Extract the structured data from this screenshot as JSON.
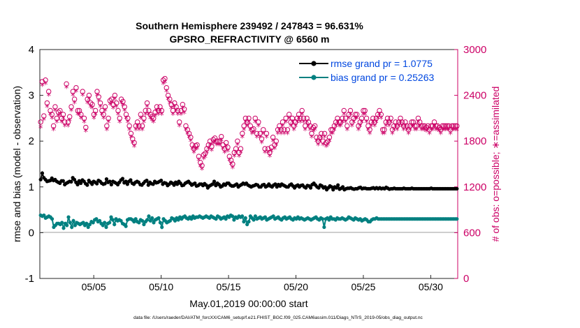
{
  "chart_data": {
    "type": "line",
    "title": "Southern Hemisphere 239492 / 247843 = 96.631%",
    "subtitle": "GPSRO_REFRACTIVITY @ 6560 m",
    "xlabel": "May.01,2019 00:00:00 start",
    "ylabel": "rmse and bias (model - observation)",
    "ylabel_right": "# of obs: o=possible; ∗=assimilated",
    "footer": "data file: /Users/raeder/DAI/ATM_forcXX/CAM6_setup/f.e21.FHIST_BGC.f09_025.CAM6assim.011/Diags_NTrS_2019-05/obs_diag_output.nc",
    "x_range": [
      1,
      32
    ],
    "ylim": [
      -1,
      4
    ],
    "ylim_right": [
      0,
      3000
    ],
    "x_ticks": [
      5,
      10,
      15,
      20,
      25,
      30
    ],
    "x_tick_labels": [
      "05/05",
      "05/10",
      "05/15",
      "05/20",
      "05/25",
      "05/30"
    ],
    "y_ticks": [
      "-1",
      "0",
      "1",
      "2",
      "3",
      "4"
    ],
    "y_right_ticks": [
      "0",
      "600",
      "1200",
      "1800",
      "2400",
      "3000"
    ],
    "grid": false,
    "legend_position": "top-right",
    "series": [
      {
        "name": "rmse grand pr = 1.0775",
        "color": "#000000",
        "marker": "filled-circle",
        "values": [
          1.16,
          1.3,
          1.2,
          1.16,
          1.12,
          1.13,
          1.14,
          1.19,
          1.14,
          1.16,
          1.12,
          1.1,
          1.08,
          1.13,
          1.13,
          1.05,
          1.08,
          1.1,
          1.12,
          1.11,
          1.2,
          1.16,
          1.1,
          1.05,
          1.13,
          1.08,
          1.15,
          1.12,
          1.07,
          1.04,
          1.14,
          1.1,
          1.06,
          1.12,
          1.1,
          1.07,
          1.14,
          1.12,
          1.08,
          1.06,
          1.07,
          1.17,
          1.1,
          1.12,
          1.05,
          1.12,
          1.1,
          1.08,
          1.05,
          1.1,
          1.15,
          1.18,
          1.09,
          1.12,
          1.06,
          1.12,
          1.15,
          1.08,
          1.06,
          1.1,
          1.12,
          1.1,
          1.05,
          1.04,
          1.08,
          1.12,
          1.14,
          1.04,
          1.1,
          1.07,
          1.06,
          1.12,
          1.09,
          1.1,
          1.12,
          1.14,
          1.06,
          1.09,
          1.08,
          1.03,
          1.06,
          1.1,
          1.08,
          1.04,
          1.1,
          1.06,
          1.12,
          1.08,
          1.03,
          1.04,
          1.08,
          1.1,
          1.12,
          1.08,
          1.04,
          1.06,
          1.08,
          1.02,
          1.03,
          1.06,
          1.06,
          1.03,
          1.07,
          1.04,
          0.98,
          1.02,
          1.04,
          1.06,
          1.12,
          1.03,
          1.08,
          1.05,
          1.0,
          1.02,
          1.06,
          1.04,
          1.08,
          1.08,
          1.04,
          1.02,
          1.02,
          1.04,
          1.06,
          1.0,
          1.03,
          1.05,
          1.08,
          1.06,
          1.08,
          1.04,
          1.02,
          1.0,
          1.02,
          1.03,
          1.05,
          1.04,
          1.0,
          1.0,
          1.04,
          1.05,
          1.0,
          1.02,
          1.06,
          1.02,
          1.0,
          1.04,
          1.06,
          1.0,
          1.05,
          1.02,
          1.06,
          1.04,
          1.02,
          1.0,
          1.0,
          1.04,
          1.06,
          1.02,
          0.98,
          1.02,
          1.04,
          1.0,
          1.03,
          1.04,
          1.0,
          0.98,
          1.03,
          1.02,
          0.98,
          1.05,
          1.08,
          1.04,
          1.0,
          0.98,
          1.04,
          1.02,
          0.98,
          1.0,
          0.94,
          0.98,
          1.02,
          1.0,
          0.94,
          1.0,
          0.98,
          1.04,
          0.95,
          0.97,
          1.0,
          0.94,
          0.96,
          0.97,
          0.97,
          0.98,
          0.96,
          0.95,
          0.96,
          0.96,
          0.98,
          0.99,
          0.96,
          0.97,
          0.97,
          0.96,
          0.96,
          0.96,
          0.97,
          0.98,
          0.96,
          0.98,
          0.96,
          0.98,
          0.96,
          0.97,
          0.96,
          0.99,
          0.97,
          0.95,
          0.96,
          0.96,
          0.97,
          0.96,
          0.96,
          0.96,
          0.96,
          0.96,
          0.97,
          0.96,
          0.96,
          0.96,
          0.96,
          0.97,
          0.96,
          0.96,
          0.96,
          0.96,
          0.96,
          0.96,
          0.96,
          0.96,
          0.96,
          0.96,
          0.96,
          0.97,
          0.96,
          0.96,
          0.96,
          0.96,
          0.96,
          0.96,
          0.96,
          0.96,
          0.96,
          0.96,
          0.96,
          0.96,
          0.96,
          0.96,
          0.96,
          0.96
        ]
      },
      {
        "name": "bias grand pr = 0.25263",
        "color": "#008080",
        "marker": "filled-circle",
        "values": [
          0.38,
          0.36,
          0.38,
          0.32,
          0.34,
          0.36,
          0.34,
          0.3,
          0.12,
          0.16,
          0.2,
          0.2,
          0.18,
          0.22,
          0.1,
          0.2,
          0.16,
          0.34,
          0.22,
          0.12,
          0.26,
          0.16,
          0.22,
          0.2,
          0.18,
          0.2,
          0.22,
          0.16,
          0.2,
          0.12,
          0.18,
          0.24,
          0.22,
          0.28,
          0.3,
          0.24,
          0.26,
          0.2,
          0.16,
          0.22,
          0.12,
          0.2,
          0.22,
          0.34,
          0.28,
          0.18,
          0.3,
          0.26,
          0.28,
          0.26,
          0.2,
          0.18,
          0.14,
          0.28,
          0.3,
          0.3,
          0.28,
          0.24,
          0.3,
          0.24,
          0.22,
          0.28,
          0.26,
          0.18,
          0.24,
          0.28,
          0.36,
          0.26,
          0.32,
          0.22,
          0.28,
          0.3,
          0.32,
          0.22,
          0.12,
          0.3,
          0.26,
          0.22,
          0.24,
          0.26,
          0.32,
          0.3,
          0.26,
          0.32,
          0.28,
          0.34,
          0.3,
          0.34,
          0.36,
          0.32,
          0.3,
          0.34,
          0.3,
          0.36,
          0.32,
          0.34,
          0.34,
          0.36,
          0.34,
          0.32,
          0.34,
          0.36,
          0.34,
          0.32,
          0.36,
          0.34,
          0.32,
          0.3,
          0.36,
          0.34,
          0.3,
          0.32,
          0.34,
          0.3,
          0.36,
          0.34,
          0.38,
          0.36,
          0.28,
          0.34,
          0.32,
          0.36,
          0.34,
          0.36,
          0.24,
          0.32,
          0.18,
          0.24,
          0.36,
          0.32,
          0.28,
          0.36,
          0.3,
          0.32,
          0.34,
          0.3,
          0.32,
          0.34,
          0.28,
          0.3,
          0.32,
          0.34,
          0.36,
          0.3,
          0.32,
          0.34,
          0.3,
          0.28,
          0.32,
          0.34,
          0.3,
          0.32,
          0.34,
          0.3,
          0.28,
          0.32,
          0.3,
          0.34,
          0.3,
          0.32,
          0.3,
          0.28,
          0.3,
          0.32,
          0.3,
          0.28,
          0.3,
          0.32,
          0.34,
          0.3,
          0.28,
          0.32,
          0.3,
          0.12,
          0.3,
          0.32,
          0.28,
          0.34,
          0.3,
          0.3,
          0.28,
          0.32,
          0.3,
          0.3,
          0.32,
          0.3,
          0.28,
          0.3,
          0.34,
          0.32,
          0.3,
          0.28,
          0.32,
          0.3,
          0.28,
          0.3,
          0.26,
          0.28,
          0.3,
          0.28,
          0.24,
          0.24,
          0.28,
          0.3,
          0.3,
          0.32,
          0.3,
          0.3,
          0.3,
          0.3,
          0.3,
          0.3,
          0.3,
          0.3,
          0.3,
          0.3,
          0.3,
          0.3,
          0.3,
          0.3,
          0.3,
          0.3,
          0.3,
          0.3,
          0.3,
          0.3,
          0.3,
          0.3,
          0.3,
          0.3,
          0.3,
          0.3,
          0.3,
          0.3,
          0.3,
          0.3,
          0.3,
          0.3,
          0.3,
          0.3,
          0.3,
          0.3,
          0.3,
          0.3,
          0.3,
          0.3,
          0.3,
          0.3,
          0.3,
          0.3,
          0.3,
          0.3,
          0.3,
          0.3,
          0.3
        ]
      },
      {
        "name": "possible",
        "axis": "right",
        "color": "#cc0066",
        "marker": "open-circle",
        "values": [
          2050,
          2580,
          2130,
          2600,
          2300,
          2450,
          2200,
          2150,
          2000,
          2250,
          2100,
          2180,
          2200,
          2100,
          2150,
          2050,
          2550,
          2050,
          2120,
          2250,
          2450,
          2350,
          2500,
          2200,
          2200,
          2150,
          2450,
          2100,
          1980,
          2350,
          2400,
          2300,
          2280,
          2150,
          2200,
          2450,
          2380,
          2300,
          2200,
          2150,
          2250,
          2000,
          2100,
          2330,
          2350,
          2280,
          2400,
          2300,
          2200,
          2100,
          2350,
          2320,
          2250,
          2150,
          2100,
          2000,
          1900,
          1830,
          1780,
          2000,
          2050,
          2000,
          2150,
          2000,
          2100,
          2200,
          2300,
          2200,
          2150,
          2120,
          2100,
          2180,
          2250,
          2200,
          2250,
          2200,
          2600,
          2620,
          2500,
          2400,
          2350,
          2280,
          2200,
          2300,
          2250,
          2200,
          2050,
          2200,
          2280,
          2220,
          2000,
          1950,
          1900,
          1850,
          1750,
          1700,
          1740,
          1750,
          1600,
          1520,
          1480,
          1620,
          1640,
          1700,
          1750,
          1800,
          1730,
          1820,
          1840,
          1800,
          1800,
          1800,
          1860,
          1750,
          1700,
          1780,
          1720,
          1600,
          1550,
          1500,
          1650,
          1700,
          1800,
          1650,
          1700,
          1900,
          2000,
          2100,
          2050,
          2100,
          2000,
          1950,
          1960,
          2100,
          1900,
          2050,
          1900,
          1830,
          1950,
          1700,
          1900,
          1700,
          1650,
          1720,
          1850,
          1750,
          1800,
          1950,
          2000,
          1950,
          2050,
          1950,
          2100,
          1950,
          2150,
          2050,
          2100,
          2000,
          2050,
          2100,
          2150,
          2100,
          2200,
          2100,
          2000,
          2100,
          2050,
          2000,
          1900,
          1980,
          2000,
          1850,
          1800,
          1850,
          1900,
          1800,
          1900,
          1780,
          1800,
          1850,
          1950,
          1950,
          2000,
          2050,
          2100,
          2050,
          2050,
          2100,
          2200,
          2100,
          2000,
          2150,
          2200,
          2050,
          2100,
          2150,
          2150,
          2000,
          2050,
          2100,
          2200,
          2200,
          2100,
          2000,
          1950,
          2050,
          2100,
          2050,
          2100,
          2150,
          2200,
          2150,
          1950,
          1950,
          2050,
          2100,
          2050,
          2100,
          1950,
          2000,
          2050,
          2000,
          2050,
          2100,
          2050,
          2000,
          2050,
          2000,
          1950,
          2000,
          2050,
          2050,
          2000,
          2000,
          2100,
          2050,
          2000,
          2000,
          2000,
          1980,
          2000,
          1950,
          2000,
          2000,
          2050,
          2000,
          2000,
          1980,
          1950,
          2000,
          2000,
          2000,
          2000,
          2000,
          1950,
          2000,
          2000,
          2000,
          2000
        ]
      },
      {
        "name": "assimilated",
        "axis": "right",
        "color": "#cc0066",
        "marker": "asterisk",
        "values": [
          1980,
          2530,
          2080,
          2550,
          2250,
          2400,
          2150,
          2100,
          1950,
          2200,
          2050,
          2130,
          2150,
          2050,
          2100,
          2000,
          2500,
          2000,
          2070,
          2200,
          2400,
          2300,
          2450,
          2150,
          2150,
          2100,
          2400,
          2050,
          1930,
          2300,
          2350,
          2250,
          2230,
          2100,
          2150,
          2400,
          2330,
          2250,
          2150,
          2100,
          2200,
          1950,
          2050,
          2280,
          2300,
          2230,
          2350,
          2250,
          2150,
          2050,
          2300,
          2270,
          2200,
          2100,
          2050,
          1950,
          1850,
          1780,
          1730,
          1950,
          2000,
          1950,
          2100,
          1950,
          2050,
          2150,
          2250,
          2150,
          2100,
          2070,
          2050,
          2130,
          2200,
          2150,
          2200,
          2150,
          2550,
          2570,
          2450,
          2350,
          2300,
          2230,
          2150,
          2250,
          2200,
          2150,
          2000,
          2150,
          2230,
          2170,
          1950,
          1900,
          1850,
          1800,
          1700,
          1650,
          1690,
          1700,
          1550,
          1470,
          1430,
          1570,
          1590,
          1650,
          1700,
          1750,
          1680,
          1770,
          1790,
          1750,
          1750,
          1750,
          1810,
          1700,
          1650,
          1730,
          1670,
          1550,
          1500,
          1450,
          1600,
          1650,
          1750,
          1600,
          1650,
          1850,
          1950,
          2050,
          2000,
          2050,
          1950,
          1900,
          1910,
          2050,
          1850,
          2000,
          1850,
          1780,
          1900,
          1650,
          1850,
          1650,
          1600,
          1670,
          1800,
          1700,
          1750,
          1900,
          1950,
          1900,
          2000,
          1900,
          2050,
          1900,
          2100,
          2000,
          2050,
          1950,
          2000,
          2050,
          2100,
          2050,
          2150,
          2050,
          1950,
          2050,
          2000,
          1950,
          1850,
          1930,
          1950,
          1800,
          1750,
          1800,
          1850,
          1750,
          1850,
          1730,
          1750,
          1800,
          1900,
          1900,
          1950,
          2000,
          2050,
          2000,
          2000,
          2050,
          2150,
          2050,
          1950,
          2100,
          2150,
          2000,
          2050,
          2100,
          2100,
          1950,
          2000,
          2050,
          2150,
          2150,
          2050,
          1950,
          1900,
          2000,
          2050,
          2000,
          2050,
          2100,
          2150,
          2100,
          1900,
          1900,
          2000,
          2050,
          2000,
          2050,
          1900,
          1950,
          2000,
          1950,
          2000,
          2050,
          2000,
          1950,
          2000,
          1950,
          1900,
          1950,
          2000,
          2000,
          1950,
          1950,
          2050,
          2000,
          1950,
          1950,
          1950,
          1930,
          1950,
          1900,
          1950,
          1950,
          2000,
          1950,
          1950,
          1930,
          1900,
          1950,
          1950,
          1950,
          1950,
          1950,
          1900,
          1950,
          1950,
          1950,
          1950
        ]
      }
    ]
  }
}
